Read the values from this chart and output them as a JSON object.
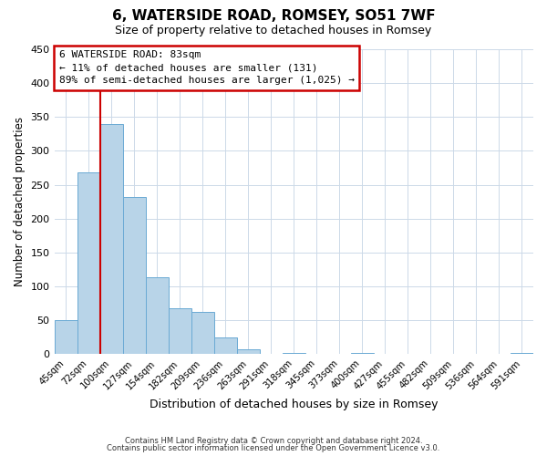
{
  "title": "6, WATERSIDE ROAD, ROMSEY, SO51 7WF",
  "subtitle": "Size of property relative to detached houses in Romsey",
  "xlabel": "Distribution of detached houses by size in Romsey",
  "ylabel": "Number of detached properties",
  "bar_labels": [
    "45sqm",
    "72sqm",
    "100sqm",
    "127sqm",
    "154sqm",
    "182sqm",
    "209sqm",
    "236sqm",
    "263sqm",
    "291sqm",
    "318sqm",
    "345sqm",
    "373sqm",
    "400sqm",
    "427sqm",
    "455sqm",
    "482sqm",
    "509sqm",
    "536sqm",
    "564sqm",
    "591sqm"
  ],
  "bar_heights": [
    50,
    268,
    340,
    232,
    114,
    68,
    62,
    25,
    7,
    0,
    1,
    0,
    0,
    1,
    0,
    0,
    0,
    0,
    0,
    0,
    2
  ],
  "bar_color": "#b8d4e8",
  "bar_edge_color": "#6aaad4",
  "ylim": [
    0,
    450
  ],
  "yticks": [
    0,
    50,
    100,
    150,
    200,
    250,
    300,
    350,
    400,
    450
  ],
  "vline_color": "#cc0000",
  "annotation_title": "6 WATERSIDE ROAD: 83sqm",
  "annotation_line1": "← 11% of detached houses are smaller (131)",
  "annotation_line2": "89% of semi-detached houses are larger (1,025) →",
  "annotation_box_facecolor": "#ffffff",
  "annotation_box_edgecolor": "#cc0000",
  "footnote1": "Contains HM Land Registry data © Crown copyright and database right 2024.",
  "footnote2": "Contains public sector information licensed under the Open Government Licence v3.0.",
  "background_color": "#ffffff",
  "grid_color": "#ccd9e8"
}
